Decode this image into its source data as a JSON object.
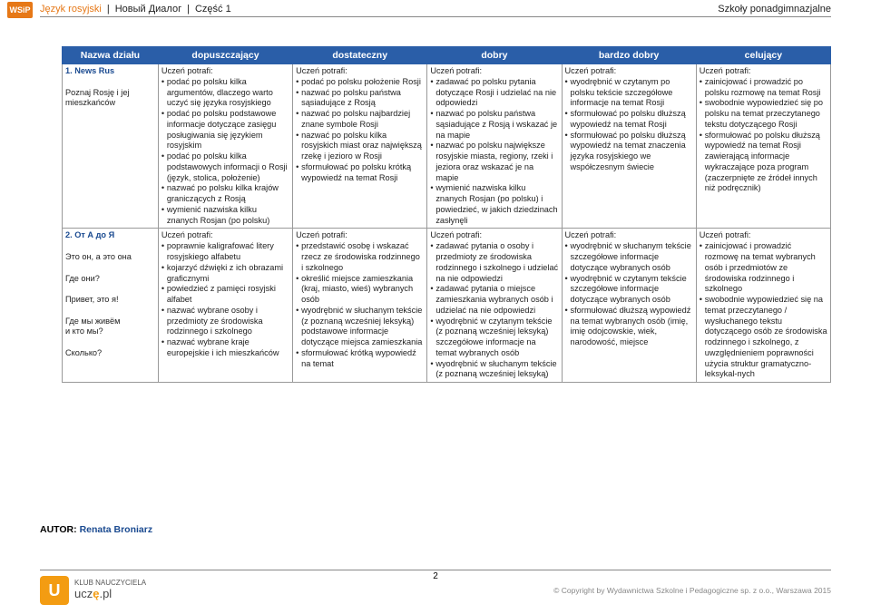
{
  "header": {
    "subject": "Język rosyjski",
    "title": "Новый Диалог",
    "part": "Część 1",
    "school": "Szkoły ponadgimnazjalne",
    "badge": "WSiP"
  },
  "columns": [
    "Nazwa działu",
    "dopuszczający",
    "dostateczny",
    "dobry",
    "bardzo dobry",
    "celujący"
  ],
  "rows": [
    {
      "section": {
        "num": "1. News Rus",
        "lines": [
          "",
          "Poznaj Rosję i jej",
          "mieszkańców"
        ]
      },
      "cells": [
        "Uczeń potrafi:\n• podać po polsku kilka argumentów, dlaczego warto uczyć się języka rosyjskiego\n• podać po polsku podstawowe informacje dotyczące zasięgu posługiwania się językiem rosyjskim\n• podać po polsku kilka podstawowych informacji o Rosji (język, stolica, położenie)\n• nazwać po polsku kilka krajów graniczących z Rosją\n• wymienić nazwiska kilku znanych Rosjan (po polsku)",
        "Uczeń potrafi:\n• podać po polsku położenie Rosji\n• nazwać po polsku państwa sąsiadujące z Rosją\n• nazwać po polsku najbardziej znane symbole Rosji\n• nazwać po polsku kilka rosyjskich miast oraz największą rzekę i jezioro w Rosji\n• sformułować po polsku krótką wypowiedź na temat Rosji",
        "Uczeń potrafi:\n• zadawać po polsku pytania dotyczące Rosji i udzielać na nie odpowiedzi\n• nazwać po polsku państwa sąsiadujące z Rosją i wskazać je na mapie\n• nazwać po polsku największe rosyjskie miasta, regiony, rzeki i jeziora oraz wskazać je na mapie\n• wymienić nazwiska kilku znanych Rosjan (po polsku) i powiedzieć, w jakich dziedzinach zasłynęli",
        "Uczeń potrafi:\n• wyodrębnić w czytanym po polsku tekście szczegółowe informacje na temat Rosji\n• sformułować po polsku dłuższą wypowiedź na temat Rosji\n• sformułować po polsku dłuższą wypowiedź na temat znaczenia języka rosyjskiego we współczesnym świecie",
        "Uczeń potrafi:\n• zainicjować i prowadzić po polsku rozmowę na temat Rosji\n• swobodnie wypowiedzieć się po polsku na temat przeczytanego tekstu dotyczącego Rosji\n• sformułować po polsku dłuższą wypowiedź na temat Rosji zawierającą informacje wykraczające poza program (zaczerpnięte ze źródeł innych niż podręcznik)"
      ]
    },
    {
      "section": {
        "num": "2. От А до Я",
        "lines": [
          "",
          "Это он, а это она",
          "",
          "Где они?",
          "",
          "Привет, это я!",
          "",
          "Где мы живём",
          "и кто мы?",
          "",
          "Сколько?"
        ]
      },
      "cells": [
        "Uczeń potrafi:\n• poprawnie kaligrafować litery rosyjskiego alfabetu\n• kojarzyć dźwięki z ich obrazami graficznymi\n• powiedzieć z pamięci rosyjski alfabet\n• nazwać wybrane osoby i przedmioty ze środowiska rodzinnego i szkolnego\n• nazwać wybrane kraje europejskie i ich mieszkańców",
        "Uczeń potrafi:\n• przedstawić osobę i wskazać rzecz ze środowiska rodzinnego i szkolnego\n• określić miejsce zamieszkania (kraj, miasto, wieś) wybranych osób\n• wyodrębnić w słuchanym tekście (z poznaną wcześniej leksyką) podstawowe informacje dotyczące miejsca zamieszkania\n• sformułować krótką wypowiedź na temat",
        "Uczeń potrafi:\n• zadawać pytania o osoby i przedmioty ze środowiska rodzinnego i szkolnego i udzielać na nie odpowiedzi\n• zadawać pytania o miejsce zamieszkania wybranych osób i udzielać na nie odpowiedzi\n• wyodrębnić  w czytanym tekście (z poznaną wcześniej leksyką) szczegółowe  informacje na temat  wybranych osób\n• wyodrębnić w słuchanym tekście (z poznaną wcześniej leksyką)",
        "Uczeń potrafi:\n• wyodrębnić w słuchanym tekście szczegółowe informacje dotyczące wybranych osób\n• wyodrębnić w czytanym tekście szczegółowe informacje dotyczące wybranych osób\n• sformułować dłuższą wypowiedź na temat wybranych osób (imię, imię odojcowskie, wiek, narodowość, miejsce",
        "Uczeń potrafi:\n• zainicjować i prowadzić rozmowę na temat wybranych osób i przedmiotów ze środowiska rodzinnego i szkolnego\n• swobodnie wypowiedzieć się na temat przeczytanego / wysłuchanego tekstu dotyczącego osób ze środowiska rodzinnego i szkolnego, z uwzględnieniem poprawności użycia struktur gramatyczno-leksykal-nych"
      ]
    }
  ],
  "author": {
    "label": "AUTOR:",
    "name": "Renata Broniarz"
  },
  "footer": {
    "club": "KLUB NAUCZYCIELA",
    "brand_plain": "ucz",
    "brand_accent": "ę",
    "brand_suffix": ".pl",
    "copyright": "© Copyright by Wydawnictwa Szkolne i Pedagogiczne sp. z o.o., Warszawa 2015"
  },
  "page": "2",
  "colors": {
    "header_bg": "#2a5ea8",
    "accent": "#e67817",
    "border": "#999999"
  }
}
